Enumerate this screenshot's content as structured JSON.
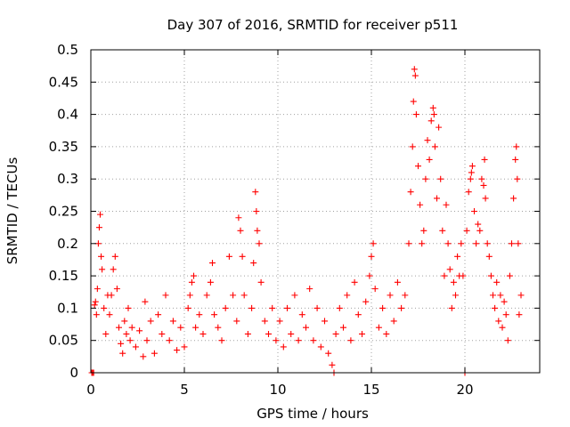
{
  "chart_data": {
    "type": "scatter",
    "title": "Day 307 of 2016, SRMTID for receiver p511",
    "xlabel": "GPS time / hours",
    "ylabel": "SRMTID / TECUs",
    "xlim": [
      0,
      24
    ],
    "ylim": [
      0,
      0.5
    ],
    "grid": true,
    "marker": "+",
    "xticks": [
      {
        "value": 0,
        "label": "0"
      },
      {
        "value": 5,
        "label": "5"
      },
      {
        "value": 10,
        "label": "10"
      },
      {
        "value": 15,
        "label": "15"
      },
      {
        "value": 20,
        "label": "20"
      }
    ],
    "yticks": [
      {
        "value": 0,
        "label": "0"
      },
      {
        "value": 0.05,
        "label": "0.05"
      },
      {
        "value": 0.1,
        "label": "0.1"
      },
      {
        "value": 0.15,
        "label": "0.15"
      },
      {
        "value": 0.2,
        "label": "0.2"
      },
      {
        "value": 0.25,
        "label": "0.25"
      },
      {
        "value": 0.3,
        "label": "0.3"
      },
      {
        "value": 0.35,
        "label": "0.35"
      },
      {
        "value": 0.4,
        "label": "0.4"
      },
      {
        "value": 0.45,
        "label": "0.45"
      },
      {
        "value": 0.5,
        "label": "0.5"
      }
    ],
    "series": [
      {
        "name": "SRMTID",
        "color": "#ff0000",
        "points": [
          [
            0.05,
            0.0
          ],
          [
            0.1,
            0.0
          ],
          [
            0.15,
            0.0
          ],
          [
            0.2,
            0.105
          ],
          [
            0.25,
            0.11
          ],
          [
            0.3,
            0.09
          ],
          [
            0.35,
            0.13
          ],
          [
            0.4,
            0.2
          ],
          [
            0.45,
            0.225
          ],
          [
            0.5,
            0.245
          ],
          [
            0.55,
            0.18
          ],
          [
            0.6,
            0.16
          ],
          [
            0.7,
            0.1
          ],
          [
            0.8,
            0.06
          ],
          [
            0.9,
            0.12
          ],
          [
            1.0,
            0.09
          ],
          [
            1.1,
            0.12
          ],
          [
            1.2,
            0.16
          ],
          [
            1.3,
            0.18
          ],
          [
            1.4,
            0.13
          ],
          [
            1.5,
            0.07
          ],
          [
            1.6,
            0.045
          ],
          [
            1.7,
            0.03
          ],
          [
            1.8,
            0.08
          ],
          [
            1.9,
            0.06
          ],
          [
            2.0,
            0.1
          ],
          [
            2.1,
            0.05
          ],
          [
            2.2,
            0.07
          ],
          [
            2.4,
            0.04
          ],
          [
            2.6,
            0.065
          ],
          [
            2.8,
            0.025
          ],
          [
            2.9,
            0.11
          ],
          [
            3.0,
            0.05
          ],
          [
            3.2,
            0.08
          ],
          [
            3.4,
            0.03
          ],
          [
            3.6,
            0.09
          ],
          [
            3.8,
            0.06
          ],
          [
            4.0,
            0.12
          ],
          [
            4.2,
            0.05
          ],
          [
            4.4,
            0.08
          ],
          [
            4.6,
            0.035
          ],
          [
            4.8,
            0.07
          ],
          [
            5.0,
            0.04
          ],
          [
            5.2,
            0.1
          ],
          [
            5.3,
            0.12
          ],
          [
            5.4,
            0.14
          ],
          [
            5.5,
            0.15
          ],
          [
            5.6,
            0.07
          ],
          [
            5.8,
            0.09
          ],
          [
            6.0,
            0.06
          ],
          [
            6.2,
            0.12
          ],
          [
            6.4,
            0.14
          ],
          [
            6.5,
            0.17
          ],
          [
            6.6,
            0.09
          ],
          [
            6.8,
            0.07
          ],
          [
            7.0,
            0.05
          ],
          [
            7.2,
            0.1
          ],
          [
            7.4,
            0.18
          ],
          [
            7.6,
            0.12
          ],
          [
            7.8,
            0.08
          ],
          [
            7.9,
            0.24
          ],
          [
            8.0,
            0.22
          ],
          [
            8.1,
            0.18
          ],
          [
            8.2,
            0.12
          ],
          [
            8.4,
            0.06
          ],
          [
            8.6,
            0.1
          ],
          [
            8.7,
            0.17
          ],
          [
            8.8,
            0.28
          ],
          [
            8.85,
            0.25
          ],
          [
            8.9,
            0.22
          ],
          [
            9.0,
            0.2
          ],
          [
            9.1,
            0.14
          ],
          [
            9.3,
            0.08
          ],
          [
            9.5,
            0.06
          ],
          [
            9.7,
            0.1
          ],
          [
            9.9,
            0.05
          ],
          [
            10.1,
            0.08
          ],
          [
            10.3,
            0.04
          ],
          [
            10.5,
            0.1
          ],
          [
            10.7,
            0.06
          ],
          [
            10.9,
            0.12
          ],
          [
            11.1,
            0.05
          ],
          [
            11.3,
            0.09
          ],
          [
            11.5,
            0.07
          ],
          [
            11.7,
            0.13
          ],
          [
            11.9,
            0.05
          ],
          [
            12.1,
            0.1
          ],
          [
            12.3,
            0.04
          ],
          [
            12.5,
            0.08
          ],
          [
            12.7,
            0.03
          ],
          [
            12.9,
            0.012
          ],
          [
            13.0,
            0.0
          ],
          [
            13.1,
            0.06
          ],
          [
            13.3,
            0.1
          ],
          [
            13.5,
            0.07
          ],
          [
            13.7,
            0.12
          ],
          [
            13.9,
            0.05
          ],
          [
            14.1,
            0.14
          ],
          [
            14.3,
            0.09
          ],
          [
            14.5,
            0.06
          ],
          [
            14.7,
            0.11
          ],
          [
            14.9,
            0.15
          ],
          [
            15.0,
            0.18
          ],
          [
            15.1,
            0.2
          ],
          [
            15.2,
            0.13
          ],
          [
            15.4,
            0.07
          ],
          [
            15.6,
            0.1
          ],
          [
            15.8,
            0.06
          ],
          [
            16.0,
            0.12
          ],
          [
            16.2,
            0.08
          ],
          [
            16.4,
            0.14
          ],
          [
            16.6,
            0.1
          ],
          [
            16.8,
            0.12
          ],
          [
            17.0,
            0.2
          ],
          [
            17.1,
            0.28
          ],
          [
            17.2,
            0.35
          ],
          [
            17.25,
            0.42
          ],
          [
            17.3,
            0.47
          ],
          [
            17.35,
            0.46
          ],
          [
            17.4,
            0.4
          ],
          [
            17.5,
            0.32
          ],
          [
            17.6,
            0.26
          ],
          [
            17.7,
            0.2
          ],
          [
            17.8,
            0.22
          ],
          [
            17.9,
            0.3
          ],
          [
            18.0,
            0.36
          ],
          [
            18.1,
            0.33
          ],
          [
            18.2,
            0.39
          ],
          [
            18.3,
            0.41
          ],
          [
            18.35,
            0.4
          ],
          [
            18.4,
            0.35
          ],
          [
            18.5,
            0.27
          ],
          [
            18.6,
            0.38
          ],
          [
            18.7,
            0.3
          ],
          [
            18.8,
            0.22
          ],
          [
            18.9,
            0.15
          ],
          [
            19.0,
            0.26
          ],
          [
            19.1,
            0.2
          ],
          [
            19.2,
            0.16
          ],
          [
            19.3,
            0.1
          ],
          [
            19.4,
            0.14
          ],
          [
            19.5,
            0.12
          ],
          [
            19.6,
            0.18
          ],
          [
            19.7,
            0.15
          ],
          [
            19.8,
            0.2
          ],
          [
            19.9,
            0.15
          ],
          [
            20.0,
            0.0
          ],
          [
            20.1,
            0.22
          ],
          [
            20.2,
            0.28
          ],
          [
            20.3,
            0.3
          ],
          [
            20.35,
            0.31
          ],
          [
            20.4,
            0.32
          ],
          [
            20.5,
            0.25
          ],
          [
            20.6,
            0.2
          ],
          [
            20.7,
            0.23
          ],
          [
            20.8,
            0.22
          ],
          [
            20.9,
            0.3
          ],
          [
            21.0,
            0.29
          ],
          [
            21.05,
            0.33
          ],
          [
            21.1,
            0.27
          ],
          [
            21.2,
            0.2
          ],
          [
            21.3,
            0.18
          ],
          [
            21.4,
            0.15
          ],
          [
            21.5,
            0.12
          ],
          [
            21.6,
            0.1
          ],
          [
            21.7,
            0.14
          ],
          [
            21.8,
            0.08
          ],
          [
            21.9,
            0.12
          ],
          [
            22.0,
            0.07
          ],
          [
            22.1,
            0.11
          ],
          [
            22.2,
            0.09
          ],
          [
            22.3,
            0.05
          ],
          [
            22.4,
            0.15
          ],
          [
            22.5,
            0.2
          ],
          [
            22.6,
            0.27
          ],
          [
            22.7,
            0.33
          ],
          [
            22.75,
            0.35
          ],
          [
            22.8,
            0.3
          ],
          [
            22.85,
            0.2
          ],
          [
            22.9,
            0.09
          ],
          [
            23.0,
            0.12
          ]
        ]
      }
    ]
  }
}
